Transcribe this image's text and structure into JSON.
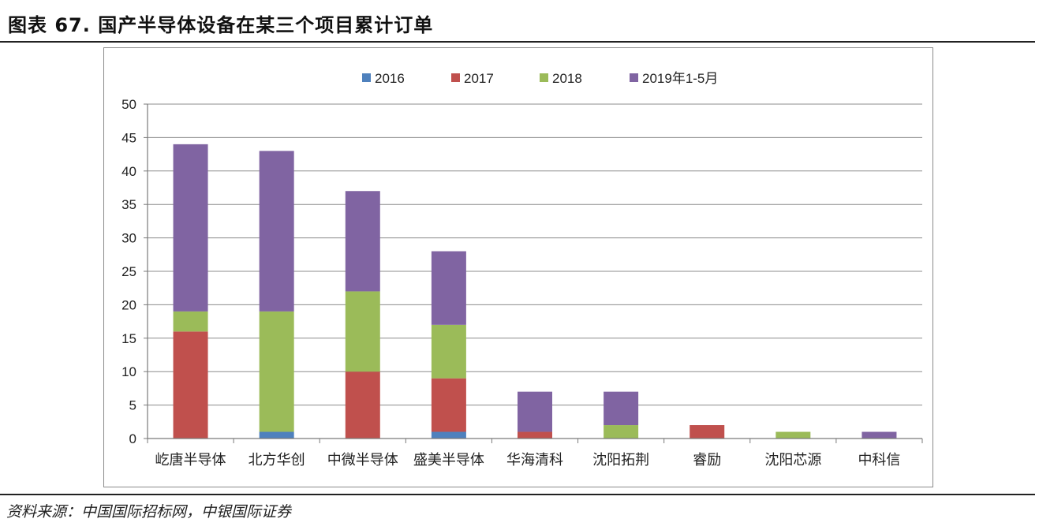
{
  "header": {
    "title": "图表 67. 国产半导体设备在某三个项目累计订单"
  },
  "footer": {
    "source": "资料来源：中国国际招标网，中银国际证券"
  },
  "chart_data": {
    "type": "bar",
    "stacked": true,
    "categories": [
      "屹唐半导体",
      "北方华创",
      "中微半导体",
      "盛美半导体",
      "华海清科",
      "沈阳拓荆",
      "睿励",
      "沈阳芯源",
      "中科信"
    ],
    "series": [
      {
        "name": "2016",
        "color": "#4F81BD",
        "values": [
          0,
          1,
          0,
          1,
          0,
          0,
          0,
          0,
          0
        ]
      },
      {
        "name": "2017",
        "color": "#C0504D",
        "values": [
          16,
          0,
          10,
          8,
          1,
          0,
          2,
          0,
          0
        ]
      },
      {
        "name": "2018",
        "color": "#9BBB59",
        "values": [
          3,
          18,
          12,
          8,
          0,
          2,
          0,
          1,
          0
        ]
      },
      {
        "name": "2019年1-5月",
        "color": "#8064A2",
        "values": [
          25,
          24,
          15,
          11,
          6,
          5,
          0,
          0,
          1
        ]
      }
    ],
    "ylim": [
      0,
      50
    ],
    "yticks": [
      0,
      5,
      10,
      15,
      20,
      25,
      30,
      35,
      40,
      45,
      50
    ],
    "grid": true,
    "legend_position": "top"
  }
}
